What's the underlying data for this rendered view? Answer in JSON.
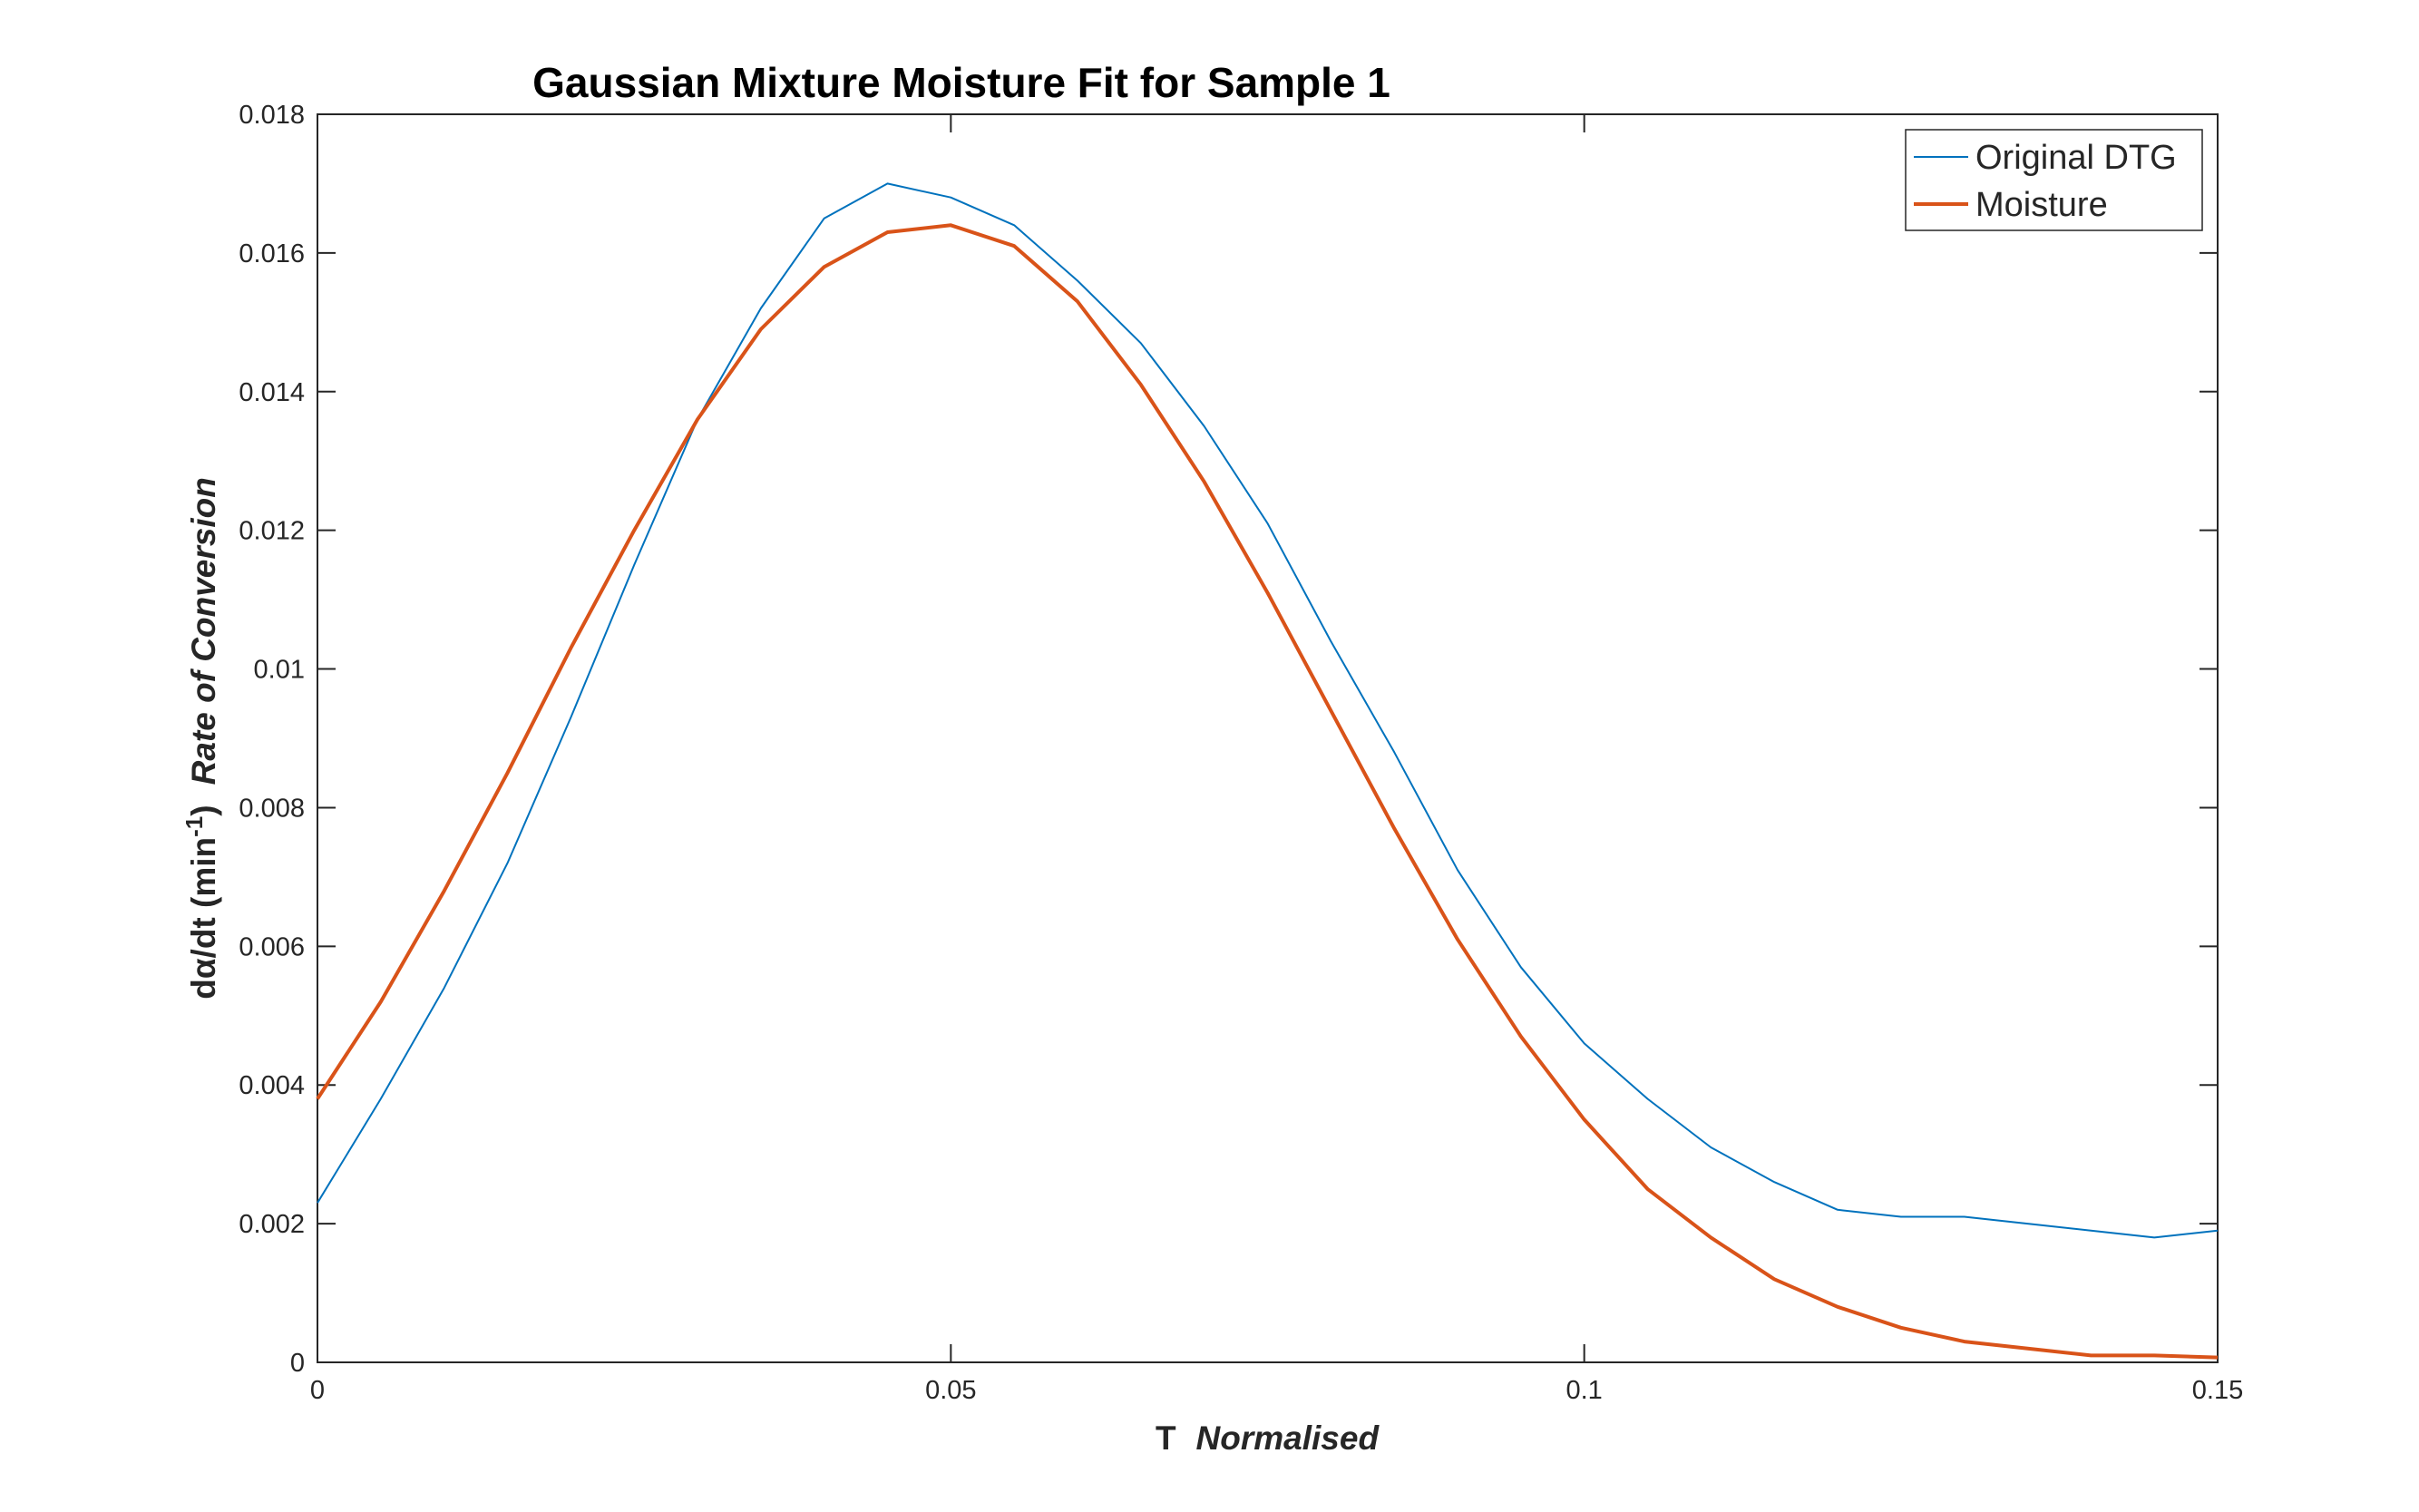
{
  "chart_data": {
    "type": "line",
    "title": "Gaussian Mixture Moisture Fit for Sample 1",
    "xlabel": {
      "prefix": "T",
      "italic": "Normalised"
    },
    "ylabel": {
      "main": "dα/dt (min",
      "superscript": "-1",
      "close": ")",
      "italic": "Rate of Conversion"
    },
    "xlim": [
      0,
      0.15
    ],
    "ylim": [
      0,
      0.018
    ],
    "xticks": [
      0,
      0.05,
      0.1,
      0.15
    ],
    "xtick_labels": [
      "0",
      "0.05",
      "0.1",
      "0.15"
    ],
    "yticks": [
      0,
      0.002,
      0.004,
      0.006,
      0.008,
      0.01,
      0.012,
      0.014,
      0.016,
      0.018
    ],
    "ytick_labels": [
      "0",
      "0.002",
      "0.004",
      "0.006",
      "0.008",
      "0.01",
      "0.012",
      "0.014",
      "0.016",
      "0.018"
    ],
    "grid": false,
    "legend_position": "top-right",
    "series": [
      {
        "name": "Original DTG",
        "color": "#0072BD",
        "x": [
          0,
          0.005,
          0.01,
          0.015,
          0.02,
          0.025,
          0.03,
          0.035,
          0.04,
          0.045,
          0.05,
          0.055,
          0.06,
          0.065,
          0.07,
          0.075,
          0.08,
          0.085,
          0.09,
          0.095,
          0.1,
          0.105,
          0.11,
          0.115,
          0.12,
          0.125,
          0.13,
          0.135,
          0.14,
          0.145,
          0.15
        ],
        "y": [
          0.0023,
          0.0038,
          0.0054,
          0.0072,
          0.0093,
          0.0115,
          0.0136,
          0.0152,
          0.0165,
          0.017,
          0.0168,
          0.0164,
          0.0156,
          0.0147,
          0.0135,
          0.0121,
          0.0104,
          0.0088,
          0.0071,
          0.0057,
          0.0046,
          0.0038,
          0.0031,
          0.0026,
          0.0022,
          0.0021,
          0.0021,
          0.002,
          0.0019,
          0.0018,
          0.0019
        ]
      },
      {
        "name": "Moisture",
        "color": "#D95319",
        "x": [
          0,
          0.005,
          0.01,
          0.015,
          0.02,
          0.025,
          0.03,
          0.035,
          0.04,
          0.045,
          0.05,
          0.055,
          0.06,
          0.065,
          0.07,
          0.075,
          0.08,
          0.085,
          0.09,
          0.095,
          0.1,
          0.105,
          0.11,
          0.115,
          0.12,
          0.125,
          0.13,
          0.135,
          0.14,
          0.145,
          0.15
        ],
        "y": [
          0.0038,
          0.0052,
          0.0068,
          0.0085,
          0.0103,
          0.012,
          0.0136,
          0.0149,
          0.0158,
          0.0163,
          0.0164,
          0.0161,
          0.0153,
          0.0141,
          0.0127,
          0.0111,
          0.0094,
          0.0077,
          0.0061,
          0.0047,
          0.0035,
          0.0025,
          0.0018,
          0.0012,
          0.0008,
          0.0005,
          0.0003,
          0.0002,
          0.0001,
          0.0001,
          7e-05
        ]
      }
    ]
  }
}
